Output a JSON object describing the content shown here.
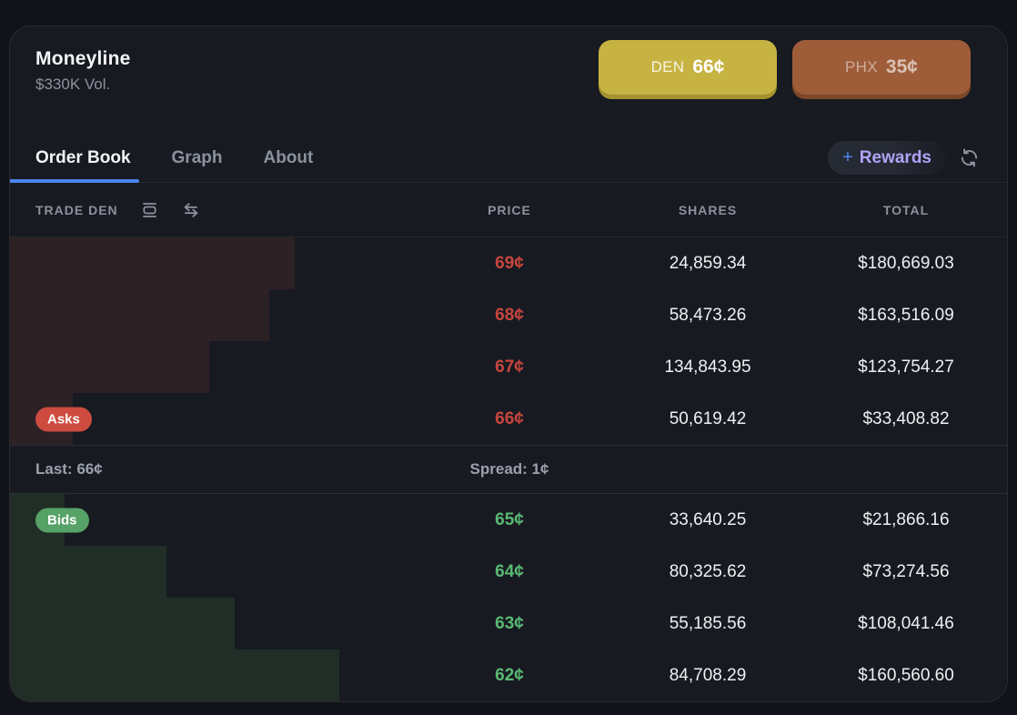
{
  "colors": {
    "page_bg": "#111319",
    "card_bg": "#181a21",
    "accent_blue": "#4a86f2",
    "accent_purple": "#b1a3f8",
    "ask_red": "#c6463e",
    "bid_green": "#58b973",
    "ask_badge": "#cd4b3f",
    "bid_badge": "#57a267",
    "ask_bar": "#2c2124",
    "bid_bar": "#212e27"
  },
  "header": {
    "title": "Moneyline",
    "volume": "$330K Vol.",
    "outcomes": [
      {
        "label": "DEN",
        "price": "66¢",
        "bg": "#c7b342",
        "edge": "#a3932e",
        "label_color": "rgba(255,255,255,0.85)",
        "price_color": "#ffffff"
      },
      {
        "label": "PHX",
        "price": "35¢",
        "bg": "#9e5c39",
        "edge": "#7c4728",
        "label_color": "rgba(255,255,255,0.5)",
        "price_color": "rgba(255,255,255,0.62)"
      }
    ]
  },
  "tabs": [
    {
      "label": "Order Book",
      "active": true
    },
    {
      "label": "Graph",
      "active": false
    },
    {
      "label": "About",
      "active": false
    }
  ],
  "rewards": {
    "plus": "+",
    "label": "Rewards"
  },
  "order_book": {
    "trade_label": "TRADE DEN",
    "columns": {
      "price": "PRICE",
      "shares": "SHARES",
      "total": "TOTAL"
    },
    "asks_badge": "Asks",
    "bids_badge": "Bids",
    "last_label": "Last: 66¢",
    "spread_label": "Spread: 1¢",
    "asks": [
      {
        "price": "69¢",
        "shares": "24,859.34",
        "total": "$180,669.03",
        "depth_pct": 28.6
      },
      {
        "price": "68¢",
        "shares": "58,473.26",
        "total": "$163,516.09",
        "depth_pct": 26.0
      },
      {
        "price": "67¢",
        "shares": "134,843.95",
        "total": "$123,754.27",
        "depth_pct": 20.0
      },
      {
        "price": "66¢",
        "shares": "50,619.42",
        "total": "$33,408.82",
        "depth_pct": 6.3
      }
    ],
    "bids": [
      {
        "price": "65¢",
        "shares": "33,640.25",
        "total": "$21,866.16",
        "depth_pct": 5.5
      },
      {
        "price": "64¢",
        "shares": "80,325.62",
        "total": "$73,274.56",
        "depth_pct": 15.7
      },
      {
        "price": "63¢",
        "shares": "55,185.56",
        "total": "$108,041.46",
        "depth_pct": 22.5
      },
      {
        "price": "62¢",
        "shares": "84,708.29",
        "total": "$160,560.60",
        "depth_pct": 33.0
      }
    ]
  }
}
